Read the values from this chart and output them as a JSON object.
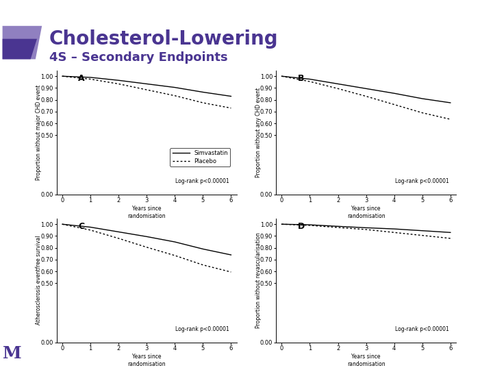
{
  "title": "Cholesterol-Lowering",
  "subtitle": "4S – Secondary Endpoints",
  "title_color": "#4a3591",
  "subtitle_color": "#4a3591",
  "background_color": "#ffffff",
  "panels": [
    {
      "label": "A",
      "ylabel": "Proportion without major CHD event",
      "simvastatin": [
        1.0,
        0.99,
        0.965,
        0.935,
        0.905,
        0.865,
        0.83
      ],
      "placebo": [
        1.0,
        0.975,
        0.935,
        0.885,
        0.835,
        0.775,
        0.73
      ],
      "logrank": "Log-rank p<0.00001",
      "ylim": [
        0.0,
        1.05
      ],
      "yticks": [
        0.0,
        0.5,
        0.6,
        0.7,
        0.8,
        0.9,
        1.0
      ],
      "show_legend": true
    },
    {
      "label": "B",
      "ylabel": "Proportion without any CHD event",
      "simvastatin": [
        1.0,
        0.975,
        0.935,
        0.895,
        0.855,
        0.81,
        0.775
      ],
      "placebo": [
        1.0,
        0.955,
        0.895,
        0.83,
        0.76,
        0.69,
        0.635
      ],
      "logrank": "Log-rank p<0.00001",
      "ylim": [
        0.0,
        1.05
      ],
      "yticks": [
        0.0,
        0.5,
        0.6,
        0.7,
        0.8,
        0.9,
        1.0
      ],
      "show_legend": false
    },
    {
      "label": "C",
      "ylabel": "Atherosclerosis eventfree survival",
      "simvastatin": [
        1.0,
        0.975,
        0.935,
        0.895,
        0.85,
        0.79,
        0.74
      ],
      "placebo": [
        1.0,
        0.95,
        0.88,
        0.805,
        0.735,
        0.655,
        0.595
      ],
      "logrank": "Log-rank p<0.00001",
      "ylim": [
        0.0,
        1.05
      ],
      "yticks": [
        0.0,
        0.5,
        0.6,
        0.7,
        0.8,
        0.9,
        1.0
      ],
      "show_legend": false
    },
    {
      "label": "D",
      "ylabel": "Proportion without revascularisation",
      "simvastatin": [
        1.0,
        0.995,
        0.982,
        0.97,
        0.96,
        0.945,
        0.93
      ],
      "placebo": [
        1.0,
        0.99,
        0.972,
        0.955,
        0.93,
        0.905,
        0.88
      ],
      "logrank": "Log-rank p<0.00001",
      "ylim": [
        0.0,
        1.05
      ],
      "yticks": [
        0.0,
        0.5,
        0.6,
        0.7,
        0.8,
        0.9,
        1.0
      ],
      "show_legend": false
    }
  ],
  "x_years": [
    0,
    1,
    2,
    3,
    4,
    5,
    6
  ],
  "xlabel": "Years since\nrandomisation",
  "simvastatin_label": "Simvastatin",
  "placebo_label": "Placebo",
  "line_color": "#000000",
  "parallelogram_color_light": "#9080c0",
  "parallelogram_color_dark": "#4a3591",
  "logo_color": "#4a3591"
}
